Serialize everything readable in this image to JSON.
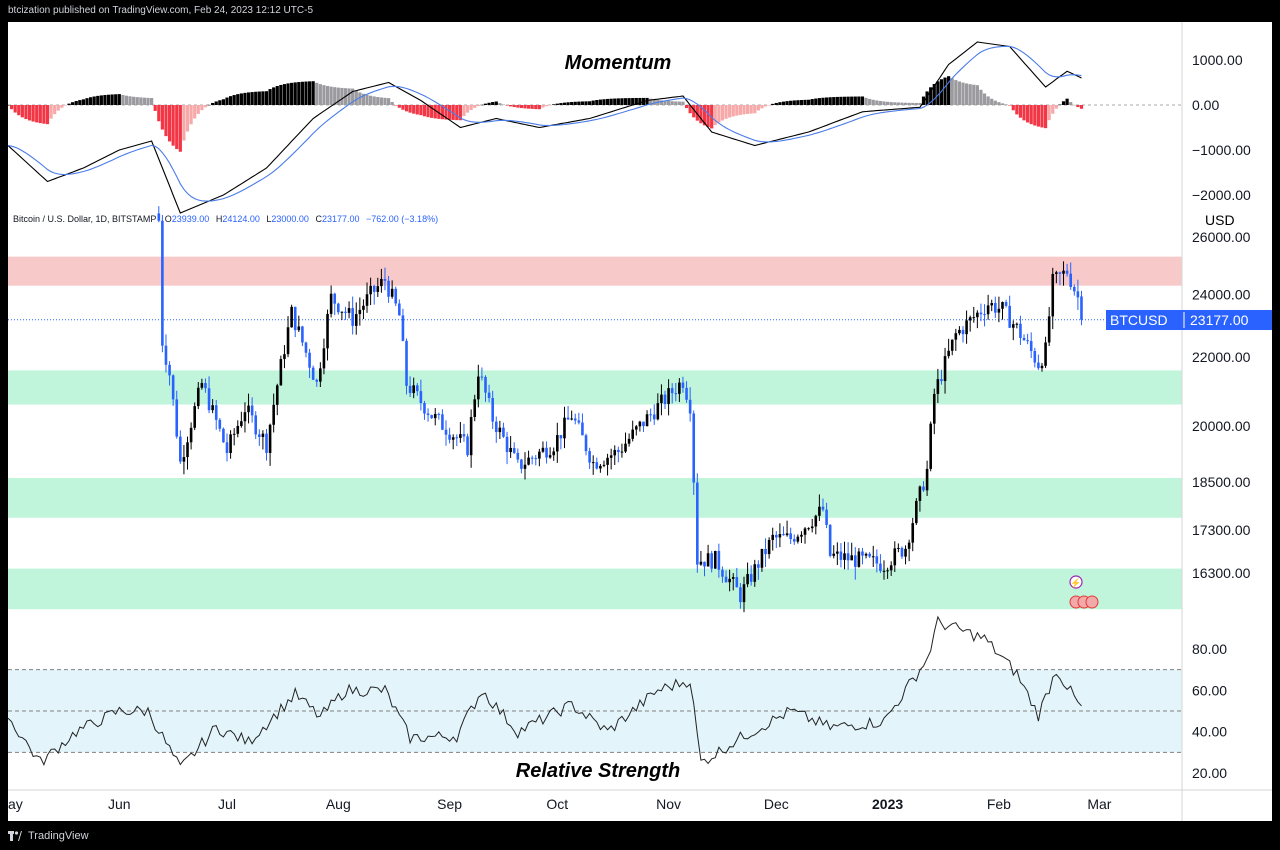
{
  "header": {
    "published": "btcization published on TradingView.com, Feb 24, 2023 12:12 UTC-5"
  },
  "footer": {
    "brand": "TradingView"
  },
  "colors": {
    "up": "#000000",
    "down": "#2962ff",
    "resistance": "#f8c9c9",
    "support": "#c0f5dc",
    "rsi_band": "#e3f5fb",
    "macd_line": "#000000",
    "signal_line": "#4a7ce8",
    "hist_pos_strong": "#000000",
    "hist_pos_weak": "#9a9a9f",
    "hist_neg_strong": "#f23645",
    "hist_neg_weak": "#f7a9a9",
    "price_label_bg": "#2962ff"
  },
  "momentum": {
    "title": "Momentum",
    "ticks": [
      "1000.00",
      "0.00",
      "−1000.00",
      "−2000.00"
    ]
  },
  "price": {
    "legend": {
      "symbol": "Bitcoin / U.S. Dollar, 1D, BITSTAMP",
      "o_label": "O",
      "o": "23939.00",
      "h_label": "H",
      "h": "24124.00",
      "l_label": "L",
      "l": "23000.00",
      "c_label": "C",
      "c": "23177.00",
      "change": "−762.00 (−3.18%)"
    },
    "currency": "USD",
    "ticks": [
      "26000.00",
      "24000.00",
      "22000.00",
      "20000.00",
      "18500.00",
      "17300.00",
      "16300.00"
    ],
    "last_label": "BTCUSD",
    "last_value": "23177.00"
  },
  "rsi": {
    "title": "Relative Strength",
    "ticks": [
      "80.00",
      "60.00",
      "40.00",
      "20.00"
    ]
  },
  "time_axis": [
    "ay",
    "Jun",
    "Jul",
    "Aug",
    "Sep",
    "Oct",
    "Nov",
    "Dec",
    "2023",
    "Feb",
    "Mar"
  ],
  "chart_data": {
    "type": "candlestick",
    "symbol": "Bitcoin / U.S. Dollar",
    "interval": "1D",
    "exchange": "BITSTAMP",
    "y_scale": "log",
    "x_range": [
      "2022-05-01",
      "2023-03-24"
    ],
    "last": {
      "open": 23939,
      "high": 24124,
      "low": 23000,
      "close": 23177,
      "change": -762,
      "change_pct": -3.18
    },
    "zones": [
      {
        "kind": "resistance",
        "from": 24300,
        "to": 25300
      },
      {
        "kind": "support",
        "from": 20600,
        "to": 21600
      },
      {
        "kind": "support",
        "from": 17600,
        "to": 18600
      },
      {
        "kind": "support",
        "from": 15500,
        "to": 16400
      }
    ],
    "close_path": [
      [
        "2022-06-12",
        26600
      ],
      [
        "2022-06-13",
        22500
      ],
      [
        "2022-06-15",
        21500
      ],
      [
        "2022-06-18",
        19000
      ],
      [
        "2022-06-24",
        21200
      ],
      [
        "2022-07-01",
        19300
      ],
      [
        "2022-07-06",
        20500
      ],
      [
        "2022-07-12",
        19500
      ],
      [
        "2022-07-19",
        23400
      ],
      [
        "2022-07-26",
        21200
      ],
      [
        "2022-07-30",
        23900
      ],
      [
        "2022-08-05",
        23200
      ],
      [
        "2022-08-10",
        24000
      ],
      [
        "2022-08-14",
        24500
      ],
      [
        "2022-08-18",
        23300
      ],
      [
        "2022-08-20",
        21200
      ],
      [
        "2022-08-27",
        20300
      ],
      [
        "2022-09-06",
        19400
      ],
      [
        "2022-09-09",
        21600
      ],
      [
        "2022-09-13",
        20200
      ],
      [
        "2022-09-20",
        18900
      ],
      [
        "2022-09-30",
        19500
      ],
      [
        "2022-10-05",
        20300
      ],
      [
        "2022-10-11",
        19000
      ],
      [
        "2022-10-18",
        19300
      ],
      [
        "2022-10-25",
        20100
      ],
      [
        "2022-11-05",
        21300
      ],
      [
        "2022-11-07",
        20600
      ],
      [
        "2022-11-09",
        16600
      ],
      [
        "2022-11-14",
        16600
      ],
      [
        "2022-11-21",
        15800
      ],
      [
        "2022-11-30",
        17100
      ],
      [
        "2022-12-05",
        17100
      ],
      [
        "2022-12-14",
        17800
      ],
      [
        "2022-12-16",
        16700
      ],
      [
        "2022-12-31",
        16500
      ],
      [
        "2023-01-06",
        16900
      ],
      [
        "2023-01-12",
        18800
      ],
      [
        "2023-01-14",
        20900
      ],
      [
        "2023-01-20",
        22700
      ],
      [
        "2023-01-29",
        23700
      ],
      [
        "2023-02-02",
        23500
      ],
      [
        "2023-02-06",
        22900
      ],
      [
        "2023-02-12",
        21800
      ],
      [
        "2023-02-14",
        22200
      ],
      [
        "2023-02-16",
        24400
      ],
      [
        "2023-02-20",
        24800
      ],
      [
        "2023-02-23",
        23900
      ],
      [
        "2023-02-24",
        23177
      ]
    ],
    "macd": [
      [
        "2022-05-01",
        -900
      ],
      [
        "2022-05-12",
        -1700
      ],
      [
        "2022-05-22",
        -1400
      ],
      [
        "2022-06-01",
        -1000
      ],
      [
        "2022-06-10",
        -800
      ],
      [
        "2022-06-18",
        -2400
      ],
      [
        "2022-06-30",
        -2000
      ],
      [
        "2022-07-12",
        -1400
      ],
      [
        "2022-07-25",
        -300
      ],
      [
        "2022-08-05",
        300
      ],
      [
        "2022-08-15",
        500
      ],
      [
        "2022-08-24",
        100
      ],
      [
        "2022-09-04",
        -500
      ],
      [
        "2022-09-14",
        -300
      ],
      [
        "2022-09-26",
        -500
      ],
      [
        "2022-10-10",
        -300
      ],
      [
        "2022-10-26",
        100
      ],
      [
        "2022-11-05",
        200
      ],
      [
        "2022-11-13",
        -600
      ],
      [
        "2022-11-25",
        -900
      ],
      [
        "2022-12-10",
        -600
      ],
      [
        "2022-12-25",
        -150
      ],
      [
        "2023-01-10",
        -50
      ],
      [
        "2023-01-18",
        900
      ],
      [
        "2023-01-26",
        1400
      ],
      [
        "2023-02-04",
        1300
      ],
      [
        "2023-02-14",
        400
      ],
      [
        "2023-02-20",
        750
      ],
      [
        "2023-02-24",
        600
      ]
    ],
    "rsi": [
      [
        "2022-05-01",
        47
      ],
      [
        "2022-05-10",
        25
      ],
      [
        "2022-05-20",
        40
      ],
      [
        "2022-06-01",
        50
      ],
      [
        "2022-06-09",
        50
      ],
      [
        "2022-06-18",
        22
      ],
      [
        "2022-06-28",
        42
      ],
      [
        "2022-07-07",
        35
      ],
      [
        "2022-07-20",
        58
      ],
      [
        "2022-07-27",
        47
      ],
      [
        "2022-08-03",
        60
      ],
      [
        "2022-08-14",
        60
      ],
      [
        "2022-08-21",
        37
      ],
      [
        "2022-09-03",
        38
      ],
      [
        "2022-09-10",
        60
      ],
      [
        "2022-09-20",
        40
      ],
      [
        "2022-10-05",
        53
      ],
      [
        "2022-10-15",
        40
      ],
      [
        "2022-10-29",
        60
      ],
      [
        "2022-11-07",
        65
      ],
      [
        "2022-11-10",
        25
      ],
      [
        "2022-11-22",
        38
      ],
      [
        "2022-12-05",
        50
      ],
      [
        "2022-12-16",
        42
      ],
      [
        "2022-12-31",
        45
      ],
      [
        "2023-01-12",
        75
      ],
      [
        "2023-01-15",
        93
      ],
      [
        "2023-01-28",
        85
      ],
      [
        "2023-02-06",
        68
      ],
      [
        "2023-02-12",
        48
      ],
      [
        "2023-02-17",
        70
      ],
      [
        "2023-02-24",
        51
      ]
    ]
  }
}
